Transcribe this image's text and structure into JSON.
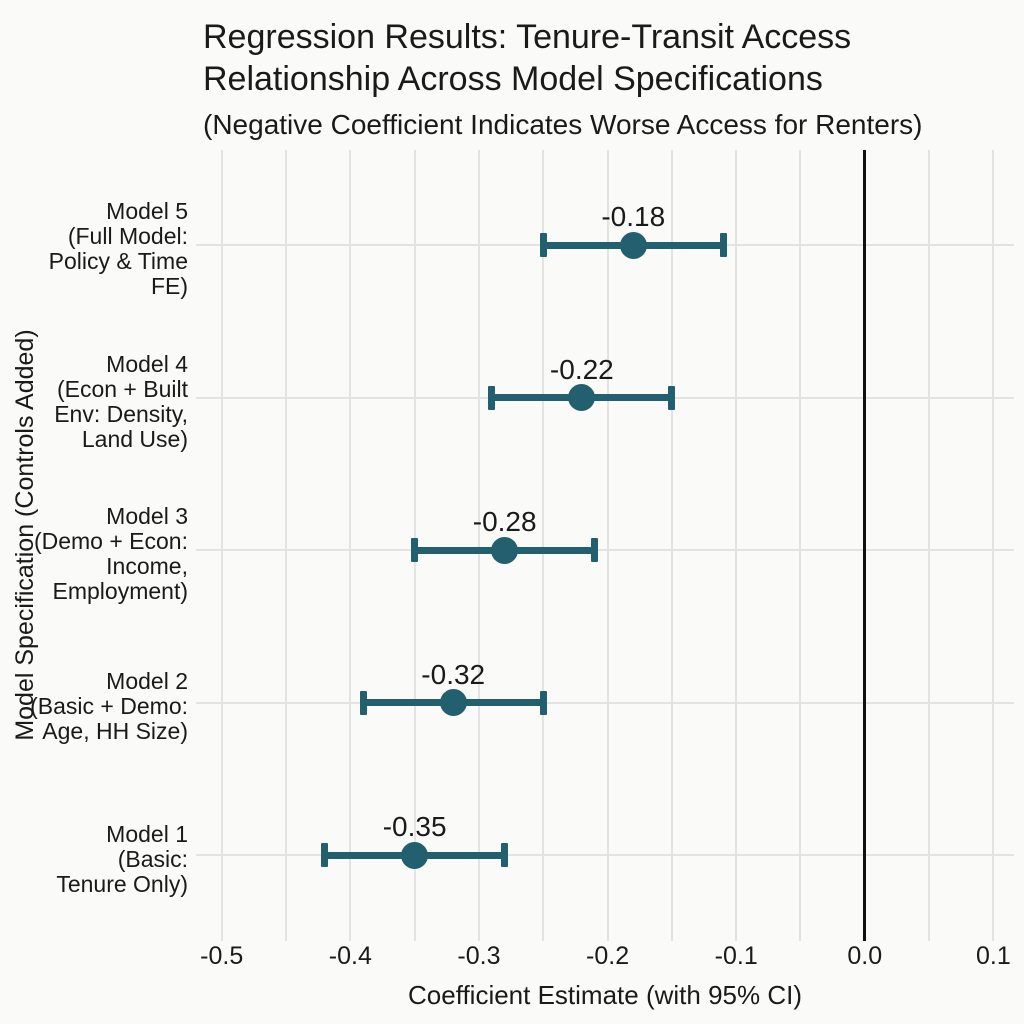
{
  "chart_data": {
    "type": "errorbar",
    "orientation": "horizontal",
    "title": "Regression Results: Tenure-Transit Access Relationship Across Model Specifications",
    "subtitle": "(Negative Coefficient Indicates Worse Access for Renters)",
    "xlabel": "Coefficient Estimate (with 95% CI)",
    "ylabel": "Model Specification (Controls Added)",
    "xlim": [
      -0.52,
      0.116
    ],
    "grid": "on",
    "zero_line_value": 0.0,
    "x_grid_step": 0.05,
    "x_grid_values": [
      -0.5,
      -0.45,
      -0.4,
      -0.35,
      -0.3,
      -0.25,
      -0.2,
      -0.15,
      -0.1,
      -0.05,
      0.0,
      0.05,
      0.1
    ],
    "x_ticks": [
      {
        "value": -0.5,
        "label": "-0.5"
      },
      {
        "value": -0.4,
        "label": "-0.4"
      },
      {
        "value": -0.3,
        "label": "-0.3"
      },
      {
        "value": -0.2,
        "label": "-0.2"
      },
      {
        "value": -0.1,
        "label": "-0.1"
      },
      {
        "value": 0.0,
        "label": "0.0"
      },
      {
        "value": 0.1,
        "label": "0.1"
      }
    ],
    "colors": {
      "point": "#23606f",
      "error_bar": "#23606f",
      "zero_line": "#111111",
      "gridline": "#e3e3e1",
      "text": "#1a1a1a",
      "background": "#fafaf8"
    },
    "series": [
      {
        "name": "Model 5 (Full Model: Policy & Time FE)",
        "label_lines": [
          "Model 5",
          "(Full Model:",
          "Policy & Time",
          "FE)"
        ],
        "estimate": -0.18,
        "estimate_label": "-0.18",
        "ci_low": -0.25,
        "ci_high": -0.11
      },
      {
        "name": "Model 4 (Econ + Built Env: Density, Land Use)",
        "label_lines": [
          "Model 4",
          "(Econ + Built",
          "Env: Density,",
          "Land Use)"
        ],
        "estimate": -0.22,
        "estimate_label": "-0.22",
        "ci_low": -0.29,
        "ci_high": -0.15
      },
      {
        "name": "Model 3 (Demo + Econ: Income, Employment)",
        "label_lines": [
          "Model 3",
          "(Demo + Econ:",
          "Income,",
          "Employment)"
        ],
        "estimate": -0.28,
        "estimate_label": "-0.28",
        "ci_low": -0.35,
        "ci_high": -0.21
      },
      {
        "name": "Model 2 (Basic + Demo: Age, HH Size)",
        "label_lines": [
          "Model 2",
          "(Basic + Demo:",
          "Age, HH Size)"
        ],
        "estimate": -0.32,
        "estimate_label": "-0.32",
        "ci_low": -0.39,
        "ci_high": -0.25
      },
      {
        "name": "Model 1 (Basic: Tenure Only)",
        "label_lines": [
          "Model 1",
          "(Basic:",
          "Tenure Only)"
        ],
        "estimate": -0.35,
        "estimate_label": "-0.35",
        "ci_low": -0.42,
        "ci_high": -0.28
      }
    ]
  }
}
